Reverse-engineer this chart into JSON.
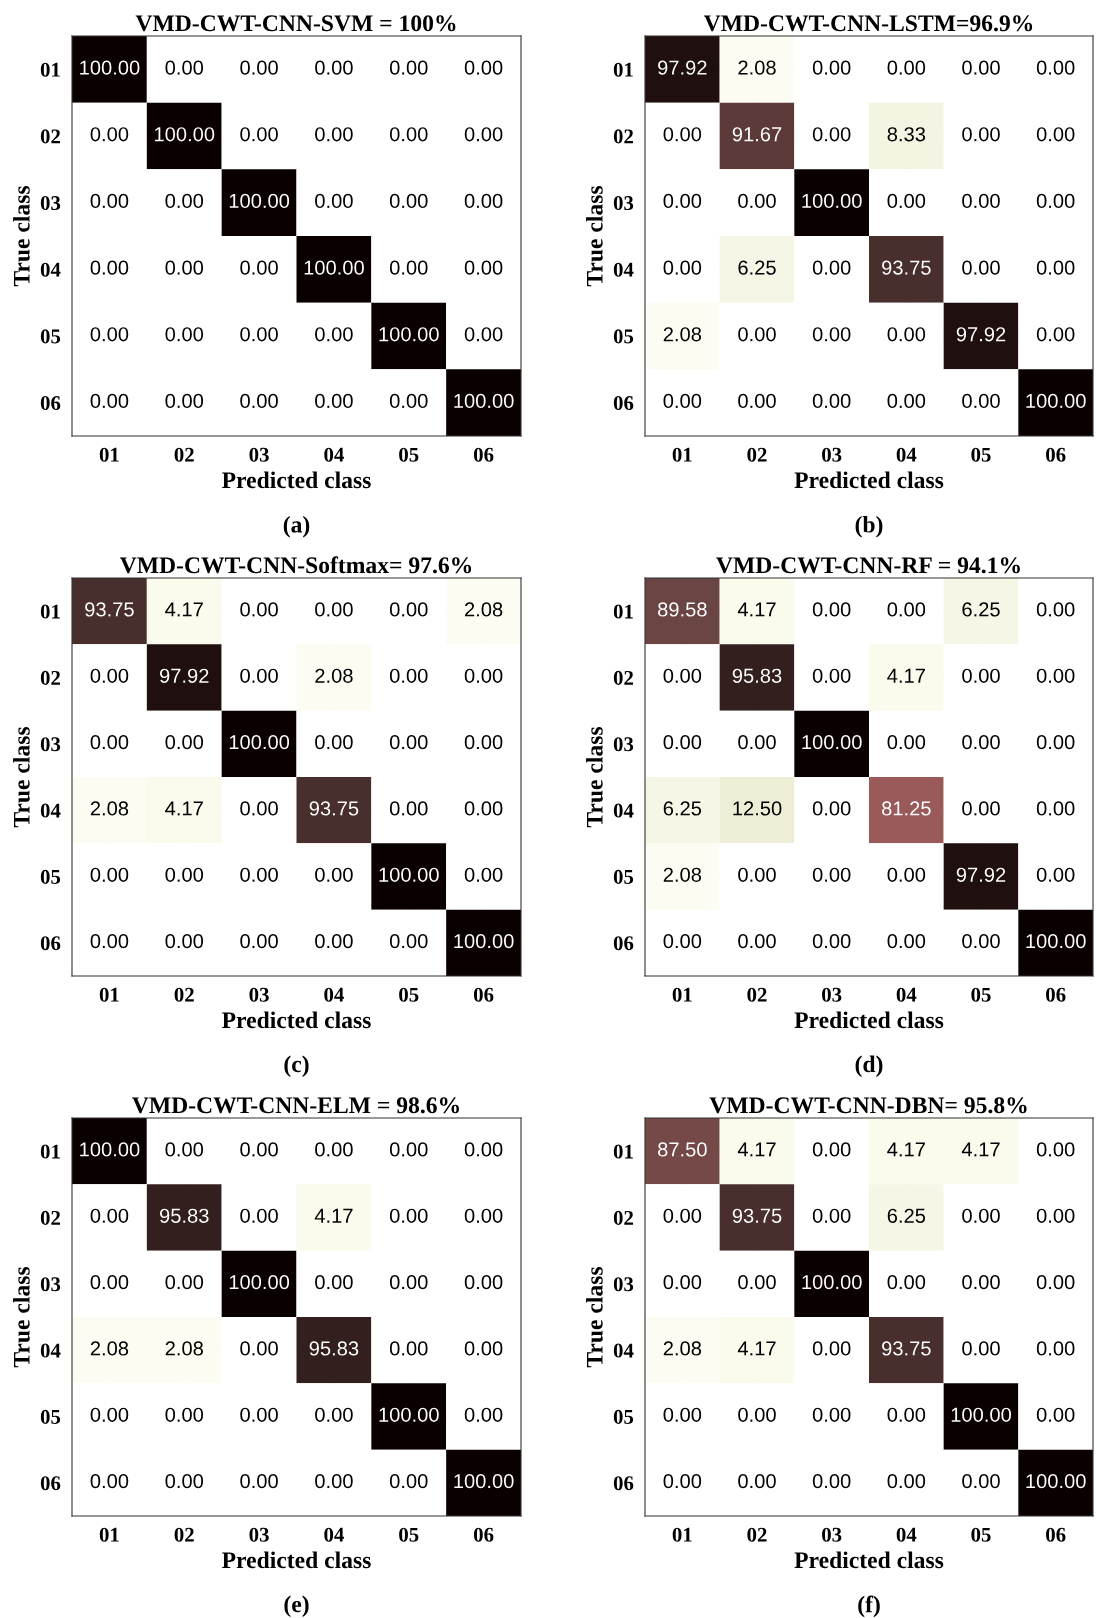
{
  "chart_data": [
    {
      "type": "heatmap",
      "title": "VMD-CWT-CNN-SVM = 100%",
      "xlabel": "Predicted class",
      "ylabel": "True class",
      "annotations": [
        "(a)"
      ],
      "grid": true,
      "categories": [
        "01",
        "02",
        "03",
        "04",
        "05",
        "06"
      ],
      "y_categories": [
        "01",
        "02",
        "03",
        "04",
        "05",
        "06"
      ],
      "cells": [
        [
          100,
          0,
          0,
          0,
          0,
          0
        ],
        [
          0,
          100,
          0,
          0,
          0,
          0
        ],
        [
          0,
          0,
          100,
          0,
          0,
          0
        ],
        [
          0,
          0,
          0,
          100,
          0,
          0
        ],
        [
          0,
          0,
          0,
          0,
          100,
          0
        ],
        [
          0,
          0,
          0,
          0,
          0,
          100
        ]
      ],
      "cell_labels": [
        [
          "100.00",
          "0.00",
          "0.00",
          "0.00",
          "0.00",
          "0.00"
        ],
        [
          "0.00",
          "100.00",
          "0.00",
          "0.00",
          "0.00",
          "0.00"
        ],
        [
          "0.00",
          "0.00",
          "100.00",
          "0.00",
          "0.00",
          "0.00"
        ],
        [
          "0.00",
          "0.00",
          "0.00",
          "100.00",
          "0.00",
          "0.00"
        ],
        [
          "0.00",
          "0.00",
          "0.00",
          "0.00",
          "100.00",
          "0.00"
        ],
        [
          "0.00",
          "0.00",
          "0.00",
          "0.00",
          "0.00",
          "100.00"
        ]
      ]
    },
    {
      "type": "heatmap",
      "title": "VMD-CWT-CNN-LSTM=96.9%",
      "xlabel": "Predicted class",
      "ylabel": "True class",
      "annotations": [
        "(b)"
      ],
      "grid": true,
      "categories": [
        "01",
        "02",
        "03",
        "04",
        "05",
        "06"
      ],
      "y_categories": [
        "01",
        "02",
        "03",
        "04",
        "05",
        "06"
      ],
      "cells": [
        [
          97.92,
          2.08,
          0,
          0,
          0,
          0
        ],
        [
          0,
          91.67,
          0,
          8.33,
          0,
          0
        ],
        [
          0,
          0,
          100,
          0,
          0,
          0
        ],
        [
          0,
          6.25,
          0,
          93.75,
          0,
          0
        ],
        [
          2.08,
          0,
          0,
          0,
          97.92,
          0
        ],
        [
          0,
          0,
          0,
          0,
          0,
          100
        ]
      ],
      "cell_labels": [
        [
          "97.92",
          "2.08",
          "0.00",
          "0.00",
          "0.00",
          "0.00"
        ],
        [
          "0.00",
          "91.67",
          "0.00",
          "8.33",
          "0.00",
          "0.00"
        ],
        [
          "0.00",
          "0.00",
          "100.00",
          "0.00",
          "0.00",
          "0.00"
        ],
        [
          "0.00",
          "6.25",
          "0.00",
          "93.75",
          "0.00",
          "0.00"
        ],
        [
          "2.08",
          "0.00",
          "0.00",
          "0.00",
          "97.92",
          "0.00"
        ],
        [
          "0.00",
          "0.00",
          "0.00",
          "0.00",
          "0.00",
          "100.00"
        ]
      ]
    },
    {
      "type": "heatmap",
      "title": "VMD-CWT-CNN-Softmax= 97.6%",
      "xlabel": "Predicted class",
      "ylabel": "True class",
      "annotations": [
        "(c)"
      ],
      "grid": true,
      "categories": [
        "01",
        "02",
        "03",
        "04",
        "05",
        "06"
      ],
      "y_categories": [
        "01",
        "02",
        "03",
        "04",
        "05",
        "06"
      ],
      "cells": [
        [
          93.75,
          4.17,
          0,
          0,
          0,
          2.08
        ],
        [
          0,
          97.92,
          0,
          2.08,
          0,
          0
        ],
        [
          0,
          0,
          100,
          0,
          0,
          0
        ],
        [
          2.08,
          4.17,
          0,
          93.75,
          0,
          0
        ],
        [
          0,
          0,
          0,
          0,
          100,
          0
        ],
        [
          0,
          0,
          0,
          0,
          0,
          100
        ]
      ],
      "cell_labels": [
        [
          "93.75",
          "4.17",
          "0.00",
          "0.00",
          "0.00",
          "2.08"
        ],
        [
          "0.00",
          "97.92",
          "0.00",
          "2.08",
          "0.00",
          "0.00"
        ],
        [
          "0.00",
          "0.00",
          "100.00",
          "0.00",
          "0.00",
          "0.00"
        ],
        [
          "2.08",
          "4.17",
          "0.00",
          "93.75",
          "0.00",
          "0.00"
        ],
        [
          "0.00",
          "0.00",
          "0.00",
          "0.00",
          "100.00",
          "0.00"
        ],
        [
          "0.00",
          "0.00",
          "0.00",
          "0.00",
          "0.00",
          "100.00"
        ]
      ]
    },
    {
      "type": "heatmap",
      "title": "VMD-CWT-CNN-RF = 94.1%",
      "xlabel": "Predicted class",
      "ylabel": "True class",
      "annotations": [
        "(d)"
      ],
      "grid": true,
      "categories": [
        "01",
        "02",
        "03",
        "04",
        "05",
        "06"
      ],
      "y_categories": [
        "01",
        "02",
        "03",
        "04",
        "05",
        "06"
      ],
      "cells": [
        [
          89.58,
          4.17,
          0,
          0,
          6.25,
          0
        ],
        [
          0,
          95.83,
          0,
          4.17,
          0,
          0
        ],
        [
          0,
          0,
          100,
          0,
          0,
          0
        ],
        [
          6.25,
          12.5,
          0,
          81.25,
          0,
          0
        ],
        [
          2.08,
          0,
          0,
          0,
          97.92,
          0
        ],
        [
          0,
          0,
          0,
          0,
          0,
          100
        ]
      ],
      "cell_labels": [
        [
          "89.58",
          "4.17",
          "0.00",
          "0.00",
          "6.25",
          "0.00"
        ],
        [
          "0.00",
          "95.83",
          "0.00",
          "4.17",
          "0.00",
          "0.00"
        ],
        [
          "0.00",
          "0.00",
          "100.00",
          "0.00",
          "0.00",
          "0.00"
        ],
        [
          "6.25",
          "12.50",
          "0.00",
          "81.25",
          "0.00",
          "0.00"
        ],
        [
          "2.08",
          "0.00",
          "0.00",
          "0.00",
          "97.92",
          "0.00"
        ],
        [
          "0.00",
          "0.00",
          "0.00",
          "0.00",
          "0.00",
          "100.00"
        ]
      ]
    },
    {
      "type": "heatmap",
      "title": "VMD-CWT-CNN-ELM = 98.6%",
      "xlabel": "Predicted class",
      "ylabel": "True class",
      "annotations": [
        "(e)"
      ],
      "grid": true,
      "categories": [
        "01",
        "02",
        "03",
        "04",
        "05",
        "06"
      ],
      "y_categories": [
        "01",
        "02",
        "03",
        "04",
        "05",
        "06"
      ],
      "cells": [
        [
          100,
          0,
          0,
          0,
          0,
          0
        ],
        [
          0,
          95.83,
          0,
          4.17,
          0,
          0
        ],
        [
          0,
          0,
          100,
          0,
          0,
          0
        ],
        [
          2.08,
          2.08,
          0,
          95.83,
          0,
          0
        ],
        [
          0,
          0,
          0,
          0,
          100,
          0
        ],
        [
          0,
          0,
          0,
          0,
          0,
          100
        ]
      ],
      "cell_labels": [
        [
          "100.00",
          "0.00",
          "0.00",
          "0.00",
          "0.00",
          "0.00"
        ],
        [
          "0.00",
          "95.83",
          "0.00",
          "4.17",
          "0.00",
          "0.00"
        ],
        [
          "0.00",
          "0.00",
          "100.00",
          "0.00",
          "0.00",
          "0.00"
        ],
        [
          "2.08",
          "2.08",
          "0.00",
          "95.83",
          "0.00",
          "0.00"
        ],
        [
          "0.00",
          "0.00",
          "0.00",
          "0.00",
          "100.00",
          "0.00"
        ],
        [
          "0.00",
          "0.00",
          "0.00",
          "0.00",
          "0.00",
          "100.00"
        ]
      ]
    },
    {
      "type": "heatmap",
      "title": "VMD-CWT-CNN-DBN= 95.8%",
      "xlabel": "Predicted class",
      "ylabel": "True class",
      "annotations": [
        "(f)"
      ],
      "grid": true,
      "categories": [
        "01",
        "02",
        "03",
        "04",
        "05",
        "06"
      ],
      "y_categories": [
        "01",
        "02",
        "03",
        "04",
        "05",
        "06"
      ],
      "cells": [
        [
          87.5,
          4.17,
          0,
          4.17,
          4.17,
          0
        ],
        [
          0,
          93.75,
          0,
          6.25,
          0,
          0
        ],
        [
          0,
          0,
          100,
          0,
          0,
          0
        ],
        [
          2.08,
          4.17,
          0,
          93.75,
          0,
          0
        ],
        [
          0,
          0,
          0,
          0,
          100,
          0
        ],
        [
          0,
          0,
          0,
          0,
          0,
          100
        ]
      ],
      "cell_labels": [
        [
          "87.50",
          "4.17",
          "0.00",
          "4.17",
          "4.17",
          "0.00"
        ],
        [
          "0.00",
          "93.75",
          "0.00",
          "6.25",
          "0.00",
          "0.00"
        ],
        [
          "0.00",
          "0.00",
          "100.00",
          "0.00",
          "0.00",
          "0.00"
        ],
        [
          "2.08",
          "4.17",
          "0.00",
          "93.75",
          "0.00",
          "0.00"
        ],
        [
          "0.00",
          "0.00",
          "0.00",
          "0.00",
          "100.00",
          "0.00"
        ],
        [
          "0.00",
          "0.00",
          "0.00",
          "0.00",
          "0.00",
          "100.00"
        ]
      ]
    }
  ]
}
